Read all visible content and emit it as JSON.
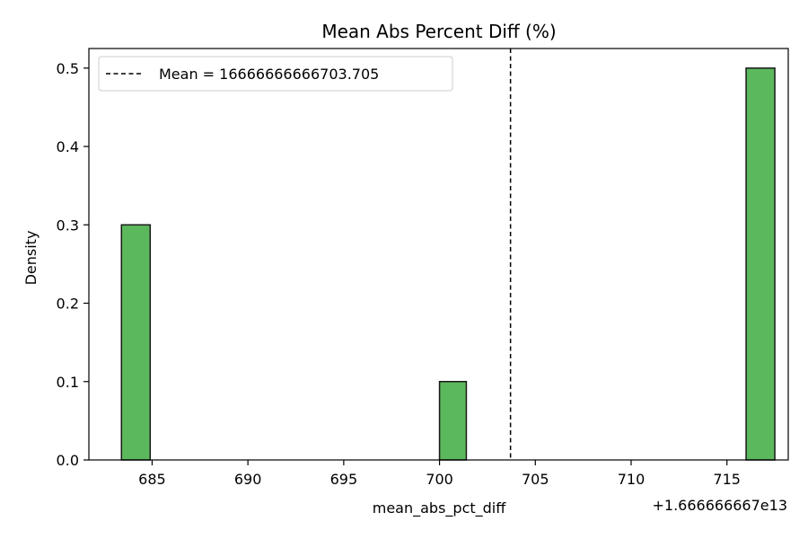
{
  "chart_data": {
    "type": "bar",
    "title": "Mean Abs Percent Diff (%)",
    "xlabel": "mean_abs_pct_diff",
    "ylabel": "Density",
    "x_offset_label": "+1.666666667e13",
    "xlim": [
      681.7,
      718.2
    ],
    "ylim": [
      0,
      0.525
    ],
    "x_ticks": [
      685,
      690,
      695,
      700,
      705,
      710,
      715
    ],
    "x_tick_labels": [
      "685",
      "690",
      "695",
      "700",
      "705",
      "710",
      "715"
    ],
    "y_ticks": [
      0.0,
      0.1,
      0.2,
      0.3,
      0.4,
      0.5
    ],
    "y_tick_labels": [
      "0.0",
      "0.1",
      "0.2",
      "0.3",
      "0.4",
      "0.5"
    ],
    "bars": [
      {
        "x_start": 683.4,
        "x_end": 684.9,
        "density": 0.3
      },
      {
        "x_start": 700.0,
        "x_end": 701.4,
        "density": 0.1
      },
      {
        "x_start": 716.0,
        "x_end": 717.5,
        "density": 0.5
      }
    ],
    "mean_line": {
      "x": 703.705,
      "label": "Mean = 16666666666703.705",
      "style": "dashed",
      "color": "#000000"
    },
    "bar_color": "#5cb85c",
    "bar_edge_color": "#1a1a1a",
    "legend_position": "top-left",
    "grid": false
  }
}
